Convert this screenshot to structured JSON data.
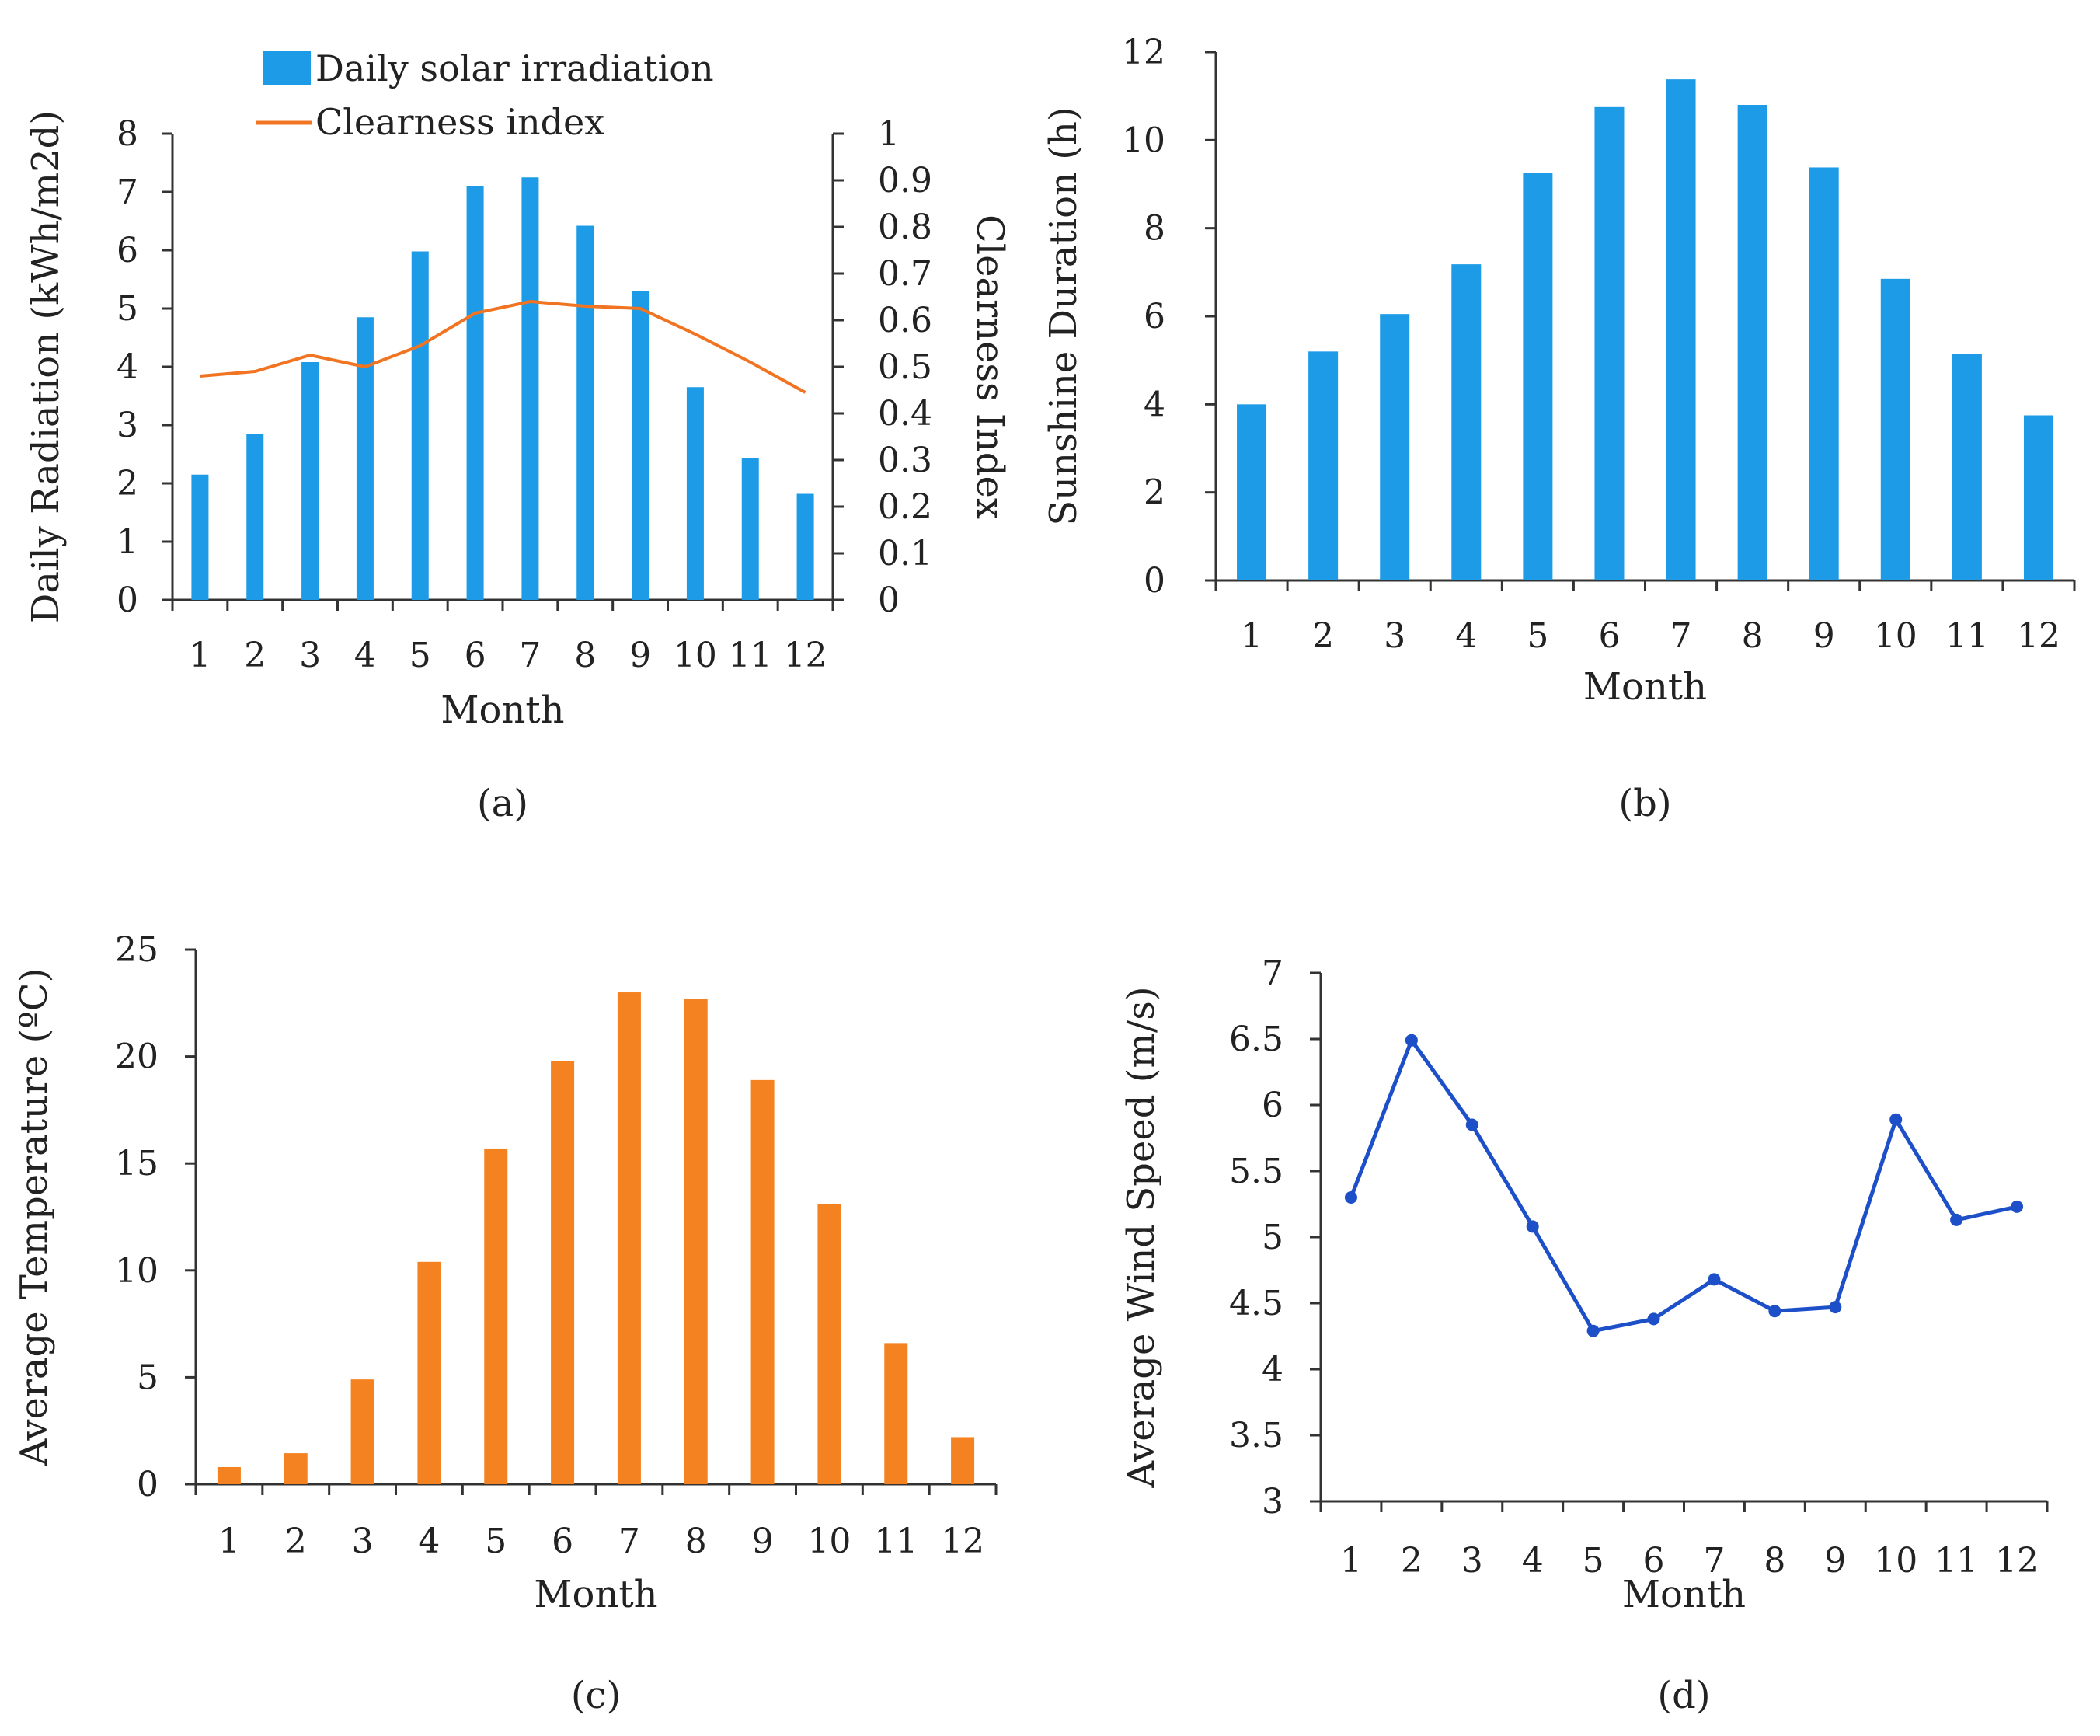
{
  "colors": {
    "blue": "#1d9be6",
    "orange": "#f58220",
    "line_orange": "#f07421",
    "wind_blue": "#1d50c8"
  },
  "chart_data": [
    {
      "id": "a",
      "panel_label": "(a)",
      "type": "bar",
      "categories": [
        "1",
        "2",
        "3",
        "4",
        "5",
        "6",
        "7",
        "8",
        "9",
        "10",
        "11",
        "12"
      ],
      "series": [
        {
          "name": "Daily solar irradiation",
          "type": "bar",
          "axis": "left",
          "values": [
            2.15,
            2.85,
            4.08,
            4.85,
            5.98,
            7.1,
            7.25,
            6.42,
            5.3,
            3.65,
            2.43,
            1.82
          ]
        },
        {
          "name": "Clearness index",
          "type": "line",
          "axis": "right",
          "values": [
            0.48,
            0.49,
            0.525,
            0.5,
            0.545,
            0.615,
            0.64,
            0.63,
            0.625,
            0.57,
            0.51,
            0.445
          ]
        }
      ],
      "xlabel": "Month",
      "ylabel": "Daily Radiation (kWh/m2d)",
      "y2label": "Clearness Index",
      "ylim": [
        0,
        8
      ],
      "y2lim": [
        0,
        1
      ],
      "yticks": [
        "0",
        "1",
        "2",
        "3",
        "4",
        "5",
        "6",
        "7",
        "8"
      ],
      "y2ticks": [
        "0",
        "0.1",
        "0.2",
        "0.3",
        "0.4",
        "0.5",
        "0.6",
        "0.7",
        "0.8",
        "0.9",
        "1"
      ],
      "legend": [
        "Daily solar irradiation",
        "Clearness index"
      ],
      "legend_position": "top"
    },
    {
      "id": "b",
      "panel_label": "(b)",
      "type": "bar",
      "categories": [
        "1",
        "2",
        "3",
        "4",
        "5",
        "6",
        "7",
        "8",
        "9",
        "10",
        "11",
        "12"
      ],
      "values": [
        4.0,
        5.2,
        6.05,
        7.18,
        9.25,
        10.75,
        11.38,
        10.8,
        9.38,
        6.85,
        5.15,
        3.75
      ],
      "xlabel": "Month",
      "ylabel": "Sunshine Duration (h)",
      "ylim": [
        0,
        12
      ],
      "yticks": [
        "0",
        "2",
        "4",
        "6",
        "8",
        "10",
        "12"
      ]
    },
    {
      "id": "c",
      "panel_label": "(c)",
      "type": "bar",
      "categories": [
        "1",
        "2",
        "3",
        "4",
        "5",
        "6",
        "7",
        "8",
        "9",
        "10",
        "11",
        "12"
      ],
      "values": [
        0.8,
        1.45,
        4.9,
        10.4,
        15.7,
        19.8,
        23.0,
        22.7,
        18.9,
        13.1,
        6.6,
        2.2
      ],
      "xlabel": "Month",
      "ylabel": "Average Temperature (ºC)",
      "ylim": [
        0,
        25
      ],
      "yticks": [
        "0",
        "5",
        "10",
        "15",
        "20",
        "25"
      ]
    },
    {
      "id": "d",
      "panel_label": "(d)",
      "type": "line",
      "categories": [
        "1",
        "2",
        "3",
        "4",
        "5",
        "6",
        "7",
        "8",
        "9",
        "10",
        "11",
        "12"
      ],
      "values": [
        5.3,
        6.49,
        5.85,
        5.08,
        4.29,
        4.38,
        4.68,
        4.44,
        4.47,
        5.89,
        5.13,
        5.23
      ],
      "xlabel": "Month",
      "ylabel": "Average Wind Speed (m/s)",
      "ylim": [
        3,
        7
      ],
      "yticks": [
        "3",
        "3.5",
        "4",
        "4.5",
        "5",
        "5.5",
        "6",
        "6.5",
        "7"
      ],
      "markers": true
    }
  ]
}
